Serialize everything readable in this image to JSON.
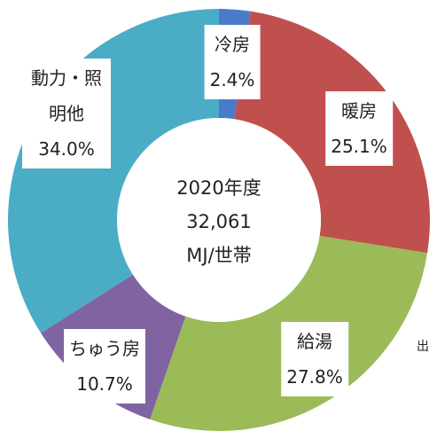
{
  "chart_data": {
    "type": "donut",
    "categories": [
      "冷房",
      "暖房",
      "給湯",
      "ちゅう房",
      "動力・照明他"
    ],
    "values": [
      2.4,
      25.1,
      27.8,
      10.7,
      34.0
    ],
    "value_labels": [
      "2.4%",
      "25.1%",
      "27.8%",
      "10.7%",
      "34.0%"
    ],
    "colors": [
      "#4a7bc8",
      "#c0504d",
      "#9bbb59",
      "#8064a2",
      "#4bacc6"
    ],
    "center_text": [
      "2020年度",
      "32,061",
      "MJ/世帯"
    ]
  },
  "note": "出"
}
